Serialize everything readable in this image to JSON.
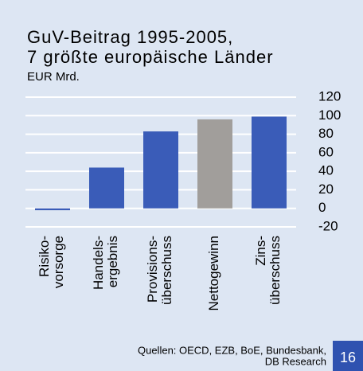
{
  "chart_data": {
    "type": "bar",
    "title": [
      "GuV-Beitrag 1995-2005,",
      "7 größte europäische Länder"
    ],
    "subtitle": "EUR Mrd.",
    "categories": [
      "Risiko-\nvorsorge",
      "Handels-\nergebnis",
      "Provisions-\nüberschuss",
      "Nettogewinn",
      "Zins-\nüberschuss"
    ],
    "values": [
      -2,
      44,
      83,
      96,
      99
    ],
    "colors": [
      "#3a5cb8",
      "#3a5cb8",
      "#3a5cb8",
      "#a19e9b",
      "#3a5cb8"
    ],
    "ylim": [
      -20,
      120
    ],
    "yticks": [
      -20,
      0,
      20,
      40,
      60,
      80,
      100,
      120
    ],
    "grid": true,
    "source": [
      "Quellen: OECD, EZB, BoE, Bundesbank,",
      "DB Research"
    ],
    "page_number": "16"
  }
}
